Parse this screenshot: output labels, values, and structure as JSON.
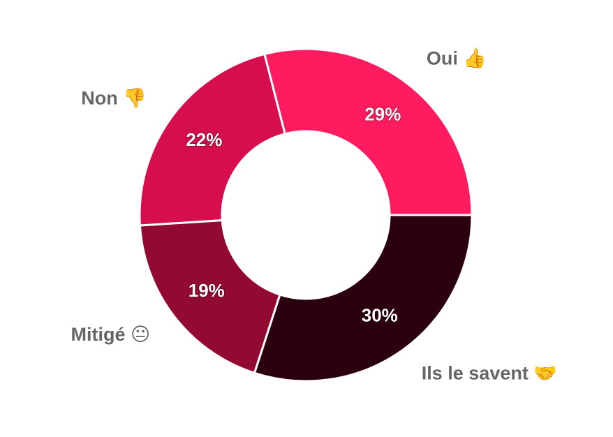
{
  "chart_data": {
    "type": "donut",
    "categories": [
      "Oui 👍",
      "Ils le savent 🤝",
      "Mitigé 😐",
      "Non 👎"
    ],
    "values": [
      29,
      30,
      19,
      22
    ],
    "value_labels": [
      "29%",
      "30%",
      "19%",
      "22%"
    ],
    "colors": [
      "#fe1b5f",
      "#2b0010",
      "#920a31",
      "#d60e4d"
    ]
  }
}
